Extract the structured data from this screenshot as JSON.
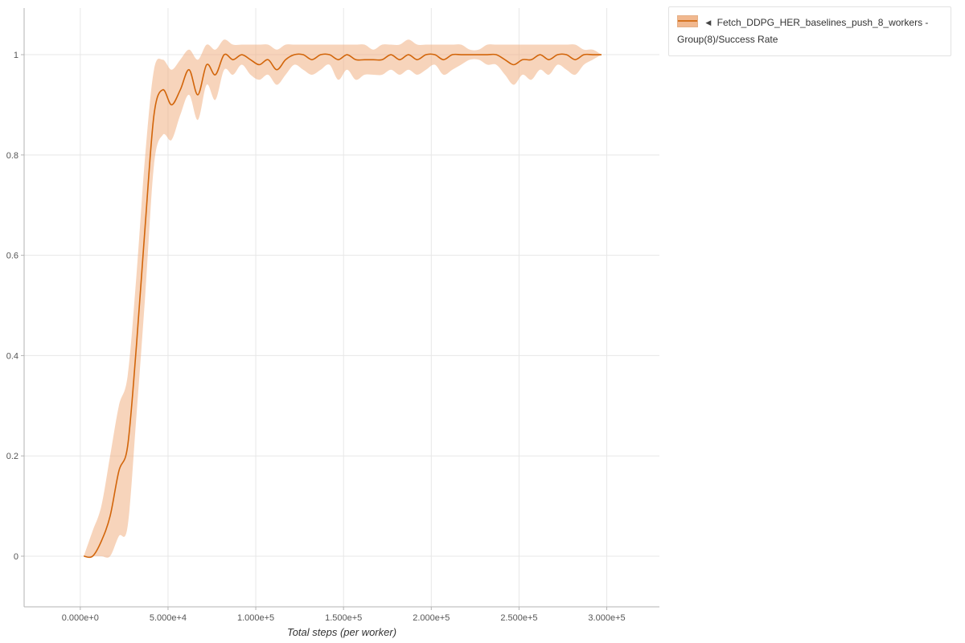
{
  "legend": {
    "collapse_icon": "◀",
    "label": "Fetch_DDPG_HER_baselines_push_8_workers - Group(8)/Success Rate"
  },
  "colors": {
    "line": "#d2650a",
    "band": "#f0b183",
    "band_opacity": 0.55,
    "grid": "#e7e7e7",
    "axis": "#b3b3b3",
    "tick_text": "#555555",
    "axis_title_text": "#333333"
  },
  "axes": {
    "x_title": "Total steps (per worker)",
    "x_ticks": [
      {
        "value": 0,
        "label": "0.000e+0"
      },
      {
        "value": 50000,
        "label": "5.000e+4"
      },
      {
        "value": 100000,
        "label": "1.000e+5"
      },
      {
        "value": 150000,
        "label": "1.500e+5"
      },
      {
        "value": 200000,
        "label": "2.000e+5"
      },
      {
        "value": 250000,
        "label": "2.500e+5"
      },
      {
        "value": 300000,
        "label": "3.000e+5"
      }
    ],
    "y_ticks": [
      {
        "value": 0,
        "label": "0"
      },
      {
        "value": 0.2,
        "label": "0.2"
      },
      {
        "value": 0.4,
        "label": "0.4"
      },
      {
        "value": 0.6,
        "label": "0.6"
      },
      {
        "value": 0.8,
        "label": "0.8"
      },
      {
        "value": 1,
        "label": "1"
      }
    ]
  },
  "chart_data": {
    "type": "line",
    "title": "",
    "xlabel": "Total steps (per worker)",
    "ylabel": "Success Rate",
    "xlim": [
      -32000,
      330000
    ],
    "ylim": [
      -0.101,
      1.093
    ],
    "grid": true,
    "legend_position": "top-right-outside",
    "series": [
      {
        "name": "Fetch_DDPG_HER_baselines_push_8_workers - Group(8)/Success Rate",
        "x": [
          2000,
          7000,
          12000,
          17000,
          22000,
          27000,
          32000,
          37000,
          42000,
          47000,
          52000,
          57000,
          62000,
          67000,
          72000,
          77000,
          82000,
          87000,
          92000,
          97000,
          102000,
          107000,
          112000,
          117000,
          122000,
          127000,
          132000,
          137000,
          142000,
          147000,
          152000,
          157000,
          162000,
          167000,
          172000,
          177000,
          182000,
          187000,
          192000,
          197000,
          202000,
          207000,
          212000,
          217000,
          222000,
          227000,
          232000,
          237000,
          242000,
          247000,
          252000,
          257000,
          262000,
          267000,
          272000,
          277000,
          282000,
          287000,
          292000,
          297000
        ],
        "mean": [
          0,
          0,
          0.03,
          0.08,
          0.17,
          0.22,
          0.42,
          0.66,
          0.88,
          0.93,
          0.9,
          0.93,
          0.97,
          0.92,
          0.98,
          0.96,
          1,
          0.99,
          1,
          0.99,
          0.98,
          0.99,
          0.97,
          0.99,
          1,
          1,
          0.99,
          1,
          1,
          0.99,
          1,
          0.99,
          0.99,
          0.99,
          0.99,
          1,
          0.99,
          1,
          0.99,
          1,
          1,
          0.99,
          1,
          1,
          1,
          1,
          1,
          1,
          0.99,
          0.98,
          0.99,
          0.99,
          1,
          0.99,
          1,
          1,
          0.99,
          1,
          1,
          1
        ],
        "lower": [
          0,
          0,
          0,
          0,
          0.04,
          0.06,
          0.28,
          0.52,
          0.78,
          0.84,
          0.83,
          0.88,
          0.92,
          0.87,
          0.94,
          0.91,
          0.97,
          0.96,
          0.98,
          0.96,
          0.95,
          0.96,
          0.94,
          0.96,
          0.98,
          0.97,
          0.96,
          0.97,
          0.98,
          0.95,
          0.97,
          0.95,
          0.96,
          0.96,
          0.96,
          0.97,
          0.96,
          0.97,
          0.96,
          0.97,
          0.98,
          0.96,
          0.97,
          0.98,
          0.99,
          0.99,
          0.98,
          0.98,
          0.96,
          0.94,
          0.96,
          0.95,
          0.97,
          0.96,
          0.98,
          0.97,
          0.96,
          0.98,
          0.99,
          1
        ],
        "upper": [
          0,
          0.05,
          0.1,
          0.2,
          0.3,
          0.36,
          0.56,
          0.8,
          0.97,
          0.99,
          0.97,
          0.99,
          1.01,
          0.99,
          1.02,
          1.01,
          1.03,
          1.02,
          1.02,
          1.02,
          1.02,
          1.02,
          1.01,
          1.02,
          1.02,
          1.02,
          1.02,
          1.02,
          1.02,
          1.02,
          1.02,
          1.02,
          1.02,
          1.01,
          1.02,
          1.02,
          1.02,
          1.03,
          1.02,
          1.02,
          1.02,
          1.02,
          1.02,
          1.02,
          1.01,
          1.01,
          1.02,
          1.02,
          1.02,
          1.02,
          1.02,
          1.02,
          1.02,
          1.02,
          1.02,
          1.02,
          1.02,
          1.01,
          1.01,
          1
        ]
      }
    ]
  }
}
